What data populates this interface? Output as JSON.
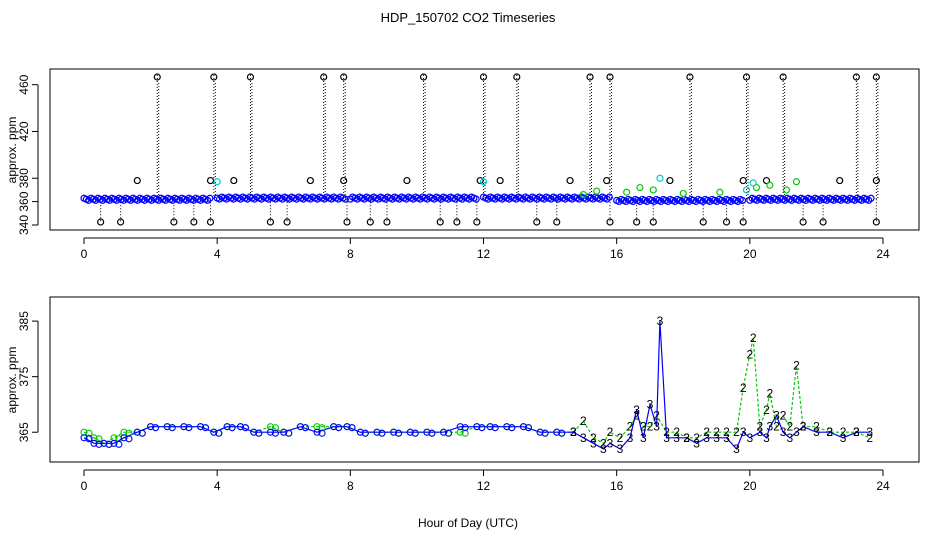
{
  "title": "HDP_150702  CO2 Timeseries",
  "xlabel": "Hour of Day (UTC)",
  "colors": {
    "black": "#000000",
    "blue": "#0000ff",
    "green": "#00cc00",
    "cyan": "#00cccc"
  },
  "chart_data": [
    {
      "type": "scatter",
      "ylabel": "approx. ppm",
      "xlim": [
        0,
        24
      ],
      "ylim": [
        340,
        470
      ],
      "xticks": [
        0,
        4,
        8,
        12,
        16,
        20,
        24
      ],
      "yticks": [
        340,
        360,
        380,
        420,
        460
      ],
      "baseline_segments": [
        {
          "start": 0.0,
          "end": 3.8,
          "level": 362,
          "color": "blue"
        },
        {
          "start": 4.0,
          "end": 7.9,
          "level": 363,
          "color": "blue"
        },
        {
          "start": 8.0,
          "end": 11.8,
          "level": 363,
          "color": "blue"
        },
        {
          "start": 12.0,
          "end": 15.8,
          "level": 363,
          "color": "blue"
        },
        {
          "start": 16.0,
          "end": 19.8,
          "level": 361,
          "color": "blue"
        },
        {
          "start": 20.0,
          "end": 23.7,
          "level": 362,
          "color": "blue"
        }
      ],
      "high_spikes": [
        2.2,
        3.9,
        5.0,
        7.2,
        7.8,
        10.2,
        12.0,
        13.0,
        15.2,
        15.8,
        18.2,
        19.9,
        21.0,
        23.2,
        23.8
      ],
      "mid_points": [
        1.6,
        3.8,
        4.5,
        6.8,
        7.8,
        9.7,
        11.9,
        12.5,
        14.6,
        15.7,
        17.6,
        19.8,
        20.5,
        22.7,
        23.8
      ],
      "low_points": [
        0.5,
        1.1,
        2.7,
        3.3,
        3.8,
        5.6,
        6.1,
        7.9,
        8.6,
        9.1,
        10.7,
        11.2,
        11.8,
        13.6,
        14.2,
        15.8,
        16.6,
        17.1,
        18.6,
        19.3,
        19.8,
        21.6,
        22.2,
        23.8
      ],
      "series": [
        {
          "name": "2",
          "color": "green",
          "points": [
            [
              15.0,
              366
            ],
            [
              15.4,
              369
            ],
            [
              16.3,
              368
            ],
            [
              16.7,
              372
            ],
            [
              17.1,
              370
            ],
            [
              18.0,
              367
            ],
            [
              19.1,
              368
            ],
            [
              20.2,
              372
            ],
            [
              20.6,
              374
            ],
            [
              21.1,
              370
            ],
            [
              21.4,
              377
            ]
          ]
        },
        {
          "name": "3",
          "color": "cyan",
          "points": [
            [
              4.0,
              377
            ],
            [
              12.0,
              377
            ],
            [
              17.3,
              380
            ],
            [
              19.9,
              370
            ],
            [
              20.1,
              376
            ]
          ]
        }
      ]
    },
    {
      "type": "line",
      "ylabel": "approx. ppm",
      "xlim": [
        0,
        24
      ],
      "ylim": [
        360,
        387
      ],
      "xticks": [
        0,
        4,
        8,
        12,
        16,
        20,
        24
      ],
      "yticks": [
        365,
        375,
        385
      ],
      "marker_label_a": "2",
      "marker_label_b": "3",
      "series": [
        {
          "name": "2",
          "color": "green",
          "points": [
            [
              0.0,
              365
            ],
            [
              0.3,
              364
            ],
            [
              0.6,
              363
            ],
            [
              0.9,
              364
            ],
            [
              1.2,
              365
            ],
            [
              1.6,
              365
            ],
            [
              2.0,
              366
            ],
            [
              2.5,
              366
            ],
            [
              3.0,
              366
            ],
            [
              3.5,
              366
            ],
            [
              3.9,
              365
            ],
            [
              4.3,
              366
            ],
            [
              4.7,
              366
            ],
            [
              5.1,
              365
            ],
            [
              5.6,
              366
            ],
            [
              6.0,
              365
            ],
            [
              6.5,
              366
            ],
            [
              7.0,
              366
            ],
            [
              7.5,
              366
            ],
            [
              7.9,
              366
            ],
            [
              8.3,
              365
            ],
            [
              8.8,
              365
            ],
            [
              9.3,
              365
            ],
            [
              9.8,
              365
            ],
            [
              10.3,
              365
            ],
            [
              10.8,
              365
            ],
            [
              11.3,
              365
            ],
            [
              11.8,
              366
            ],
            [
              12.2,
              366
            ],
            [
              12.7,
              366
            ],
            [
              13.2,
              366
            ],
            [
              13.7,
              365
            ],
            [
              14.2,
              365
            ],
            [
              14.7,
              365
            ],
            [
              15.0,
              367
            ],
            [
              15.3,
              364
            ],
            [
              15.6,
              363
            ],
            [
              15.8,
              365
            ],
            [
              16.1,
              364
            ],
            [
              16.4,
              366
            ],
            [
              16.6,
              368
            ],
            [
              16.8,
              366
            ],
            [
              17.0,
              366
            ],
            [
              17.2,
              368
            ],
            [
              17.5,
              365
            ],
            [
              17.8,
              365
            ],
            [
              18.1,
              364
            ],
            [
              18.4,
              364
            ],
            [
              18.7,
              365
            ],
            [
              19.0,
              365
            ],
            [
              19.3,
              365
            ],
            [
              19.6,
              365
            ],
            [
              19.8,
              373
            ],
            [
              20.0,
              379
            ],
            [
              20.1,
              382
            ],
            [
              20.3,
              366
            ],
            [
              20.5,
              369
            ],
            [
              20.6,
              372
            ],
            [
              20.8,
              366
            ],
            [
              21.0,
              368
            ],
            [
              21.2,
              366
            ],
            [
              21.4,
              377
            ],
            [
              21.6,
              366
            ],
            [
              22.0,
              366
            ],
            [
              22.4,
              365
            ],
            [
              22.8,
              365
            ],
            [
              23.2,
              365
            ],
            [
              23.6,
              364
            ]
          ]
        },
        {
          "name": "3",
          "color": "blue",
          "points": [
            [
              0.0,
              364
            ],
            [
              0.3,
              363
            ],
            [
              0.6,
              363
            ],
            [
              0.9,
              363
            ],
            [
              1.2,
              364
            ],
            [
              1.6,
              365
            ],
            [
              2.0,
              366
            ],
            [
              2.5,
              366
            ],
            [
              3.0,
              366
            ],
            [
              3.5,
              366
            ],
            [
              3.9,
              365
            ],
            [
              4.3,
              366
            ],
            [
              4.7,
              366
            ],
            [
              5.1,
              365
            ],
            [
              5.6,
              365
            ],
            [
              6.0,
              365
            ],
            [
              6.5,
              366
            ],
            [
              7.0,
              365
            ],
            [
              7.5,
              366
            ],
            [
              7.9,
              366
            ],
            [
              8.3,
              365
            ],
            [
              8.8,
              365
            ],
            [
              9.3,
              365
            ],
            [
              9.8,
              365
            ],
            [
              10.3,
              365
            ],
            [
              10.8,
              365
            ],
            [
              11.3,
              366
            ],
            [
              11.8,
              366
            ],
            [
              12.2,
              366
            ],
            [
              12.7,
              366
            ],
            [
              13.2,
              366
            ],
            [
              13.7,
              365
            ],
            [
              14.2,
              365
            ],
            [
              14.7,
              365
            ],
            [
              15.0,
              364
            ],
            [
              15.3,
              363
            ],
            [
              15.6,
              362
            ],
            [
              15.8,
              363
            ],
            [
              16.1,
              362
            ],
            [
              16.4,
              364
            ],
            [
              16.6,
              369
            ],
            [
              16.8,
              364
            ],
            [
              17.0,
              370
            ],
            [
              17.2,
              366
            ],
            [
              17.3,
              385
            ],
            [
              17.5,
              364
            ],
            [
              17.8,
              364
            ],
            [
              18.1,
              364
            ],
            [
              18.4,
              363
            ],
            [
              18.7,
              364
            ],
            [
              19.0,
              364
            ],
            [
              19.3,
              364
            ],
            [
              19.6,
              362
            ],
            [
              19.8,
              365
            ],
            [
              20.0,
              364
            ],
            [
              20.3,
              365
            ],
            [
              20.5,
              364
            ],
            [
              20.6,
              366
            ],
            [
              20.8,
              368
            ],
            [
              21.0,
              365
            ],
            [
              21.2,
              364
            ],
            [
              21.4,
              365
            ],
            [
              21.6,
              366
            ],
            [
              22.0,
              365
            ],
            [
              22.4,
              365
            ],
            [
              22.8,
              364
            ],
            [
              23.2,
              365
            ],
            [
              23.6,
              365
            ]
          ]
        }
      ]
    }
  ]
}
